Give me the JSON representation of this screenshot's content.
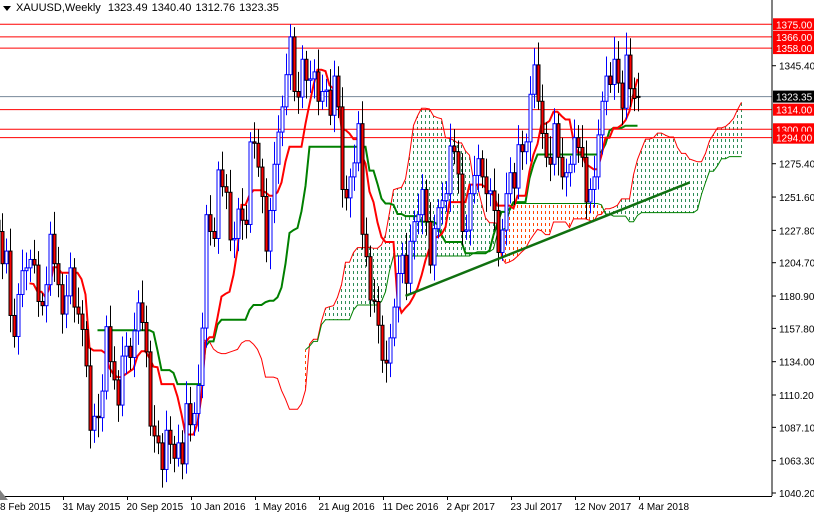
{
  "header": {
    "symbol_timeframe": "XAUUSD,Weekly",
    "open": "1323.49",
    "high": "1340.40",
    "low": "1312.76",
    "close": "1323.35"
  },
  "colors": {
    "background": "#ffffff",
    "bull_candle": "#0000ff",
    "bear_candle_body": "#ff0000",
    "bear_candle_outline": "#000000",
    "tenkan": "#ff0000",
    "kijun": "#008000",
    "span_a": "#ff0000",
    "span_b": "#008000",
    "bear_cloud": "#ff4500",
    "bull_cloud": "#2e8b57",
    "level_line": "#ff0000",
    "price_line": "#778899",
    "trendline": "#107010"
  },
  "chart_data": {
    "type": "candlestick",
    "indicator": "ichimoku",
    "ichimoku_periods": [
      9,
      26,
      52
    ],
    "start_week": "2015-02-08",
    "closes": [
      1227,
      1204,
      1213,
      1167,
      1152,
      1182,
      1199,
      1201,
      1207,
      1203,
      1177,
      1174,
      1189,
      1225,
      1204,
      1189,
      1168,
      1181,
      1201,
      1173,
      1168,
      1157,
      1131,
      1085,
      1095,
      1094,
      1113,
      1159,
      1134,
      1121,
      1103,
      1138,
      1145,
      1137,
      1156,
      1176,
      1162,
      1141,
      1088,
      1081,
      1076,
      1057,
      1085,
      1075,
      1065,
      1076,
      1061,
      1104,
      1089,
      1097,
      1117,
      1158,
      1239,
      1227,
      1222,
      1271,
      1259,
      1255,
      1221,
      1222,
      1243,
      1235,
      1232,
      1291,
      1290,
      1273,
      1252,
      1213,
      1242,
      1275,
      1298,
      1316,
      1339,
      1366,
      1327,
      1323,
      1350,
      1335,
      1336,
      1341,
      1320,
      1327,
      1328,
      1310,
      1338,
      1316,
      1257,
      1251,
      1266,
      1276,
      1304,
      1225,
      1209,
      1178,
      1177,
      1160,
      1135,
      1133,
      1151,
      1173,
      1197,
      1210,
      1190,
      1220,
      1234,
      1239,
      1257,
      1234,
      1203,
      1229,
      1244,
      1249,
      1254,
      1288,
      1284,
      1268,
      1227,
      1228,
      1254,
      1267,
      1279,
      1266,
      1254,
      1256,
      1242,
      1212,
      1228,
      1254,
      1269,
      1258,
      1289,
      1284,
      1291,
      1325,
      1346,
      1320,
      1297,
      1280,
      1275,
      1304,
      1280,
      1266,
      1269,
      1275,
      1294,
      1287,
      1280,
      1248,
      1257,
      1266,
      1296,
      1320,
      1338,
      1332,
      1350,
      1333,
      1315,
      1353,
      1329,
      1322,
      1323.35
    ],
    "last_candle": {
      "open": 1323.49,
      "high": 1340.4,
      "low": 1312.76,
      "close": 1323.35
    },
    "notable_highs": {
      "2016-07-03": 1375,
      "2017-09-03": 1358,
      "2018-01-21": 1366
    },
    "ylim": [
      1040.2,
      1390
    ],
    "y_ticks": [
      "1345.40",
      "1275.40",
      "1251.60",
      "1227.80",
      "1204.70",
      "1180.90",
      "1157.80",
      "1134.00",
      "1110.20",
      "1087.10",
      "1063.30",
      "1040.20"
    ],
    "x_ticks": [
      {
        "date": "2015-02-08",
        "label": "8 Feb 2015"
      },
      {
        "date": "2015-05-31",
        "label": "31 May 2015"
      },
      {
        "date": "2015-09-20",
        "label": "20 Sep 2015"
      },
      {
        "date": "2016-01-10",
        "label": "10 Jan 2016"
      },
      {
        "date": "2016-05-01",
        "label": "1 May 2016"
      },
      {
        "date": "2016-08-21",
        "label": "21 Aug 2016"
      },
      {
        "date": "2016-12-11",
        "label": "11 Dec 2016"
      },
      {
        "date": "2017-04-02",
        "label": "2 Apr 2017"
      },
      {
        "date": "2017-07-23",
        "label": "23 Jul 2017"
      },
      {
        "date": "2017-11-12",
        "label": "12 Nov 2017"
      },
      {
        "date": "2018-03-04",
        "label": "4 Mar 2018"
      }
    ],
    "levels": [
      {
        "price": 1375.0,
        "label": "1375.00"
      },
      {
        "price": 1366.0,
        "label": "1366.00"
      },
      {
        "price": 1358.0,
        "label": "1358.00"
      },
      {
        "price": 1314.0,
        "label": "1314.00"
      },
      {
        "price": 1300.0,
        "label": "1300.00"
      },
      {
        "price": 1294.0,
        "label": "1294.00"
      }
    ],
    "current_price": {
      "price": 1323.35,
      "label": "1323.35"
    },
    "trendline": {
      "from": {
        "date": "2017-01-22",
        "price": 1181
      },
      "to": {
        "date": "2018-06-03",
        "price": 1262
      }
    }
  }
}
